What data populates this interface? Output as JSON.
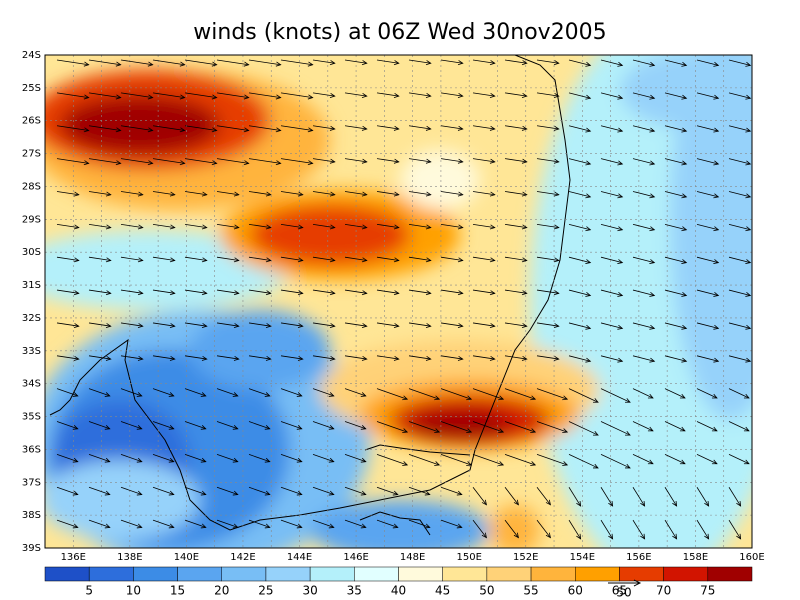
{
  "title": "winds (knots) at 06Z Wed 30nov2005",
  "lat_labels": [
    "24S",
    "25S",
    "26S",
    "27S",
    "28S",
    "29S",
    "30S",
    "31S",
    "32S",
    "33S",
    "34S",
    "35S",
    "36S",
    "37S",
    "38S",
    "39S"
  ],
  "lon_labels": [
    "136E",
    "138E",
    "140E",
    "142E",
    "144E",
    "146E",
    "148E",
    "150E",
    "152E",
    "154E",
    "156E",
    "158E",
    "160E"
  ],
  "colorbar": {
    "colors": [
      "#1e50c8",
      "#2d6edc",
      "#3c8ce6",
      "#5aa5f0",
      "#78bef5",
      "#96d2fa",
      "#b4f0fa",
      "#e1ffff",
      "#fffadc",
      "#ffe696",
      "#ffd278",
      "#ffb43c",
      "#ffa000",
      "#e63c00",
      "#d21400",
      "#a00000"
    ],
    "labels": [
      5,
      10,
      15,
      20,
      25,
      30,
      35,
      40,
      45,
      50,
      55,
      60,
      65,
      70,
      75
    ]
  },
  "reference_vector": "50"
}
